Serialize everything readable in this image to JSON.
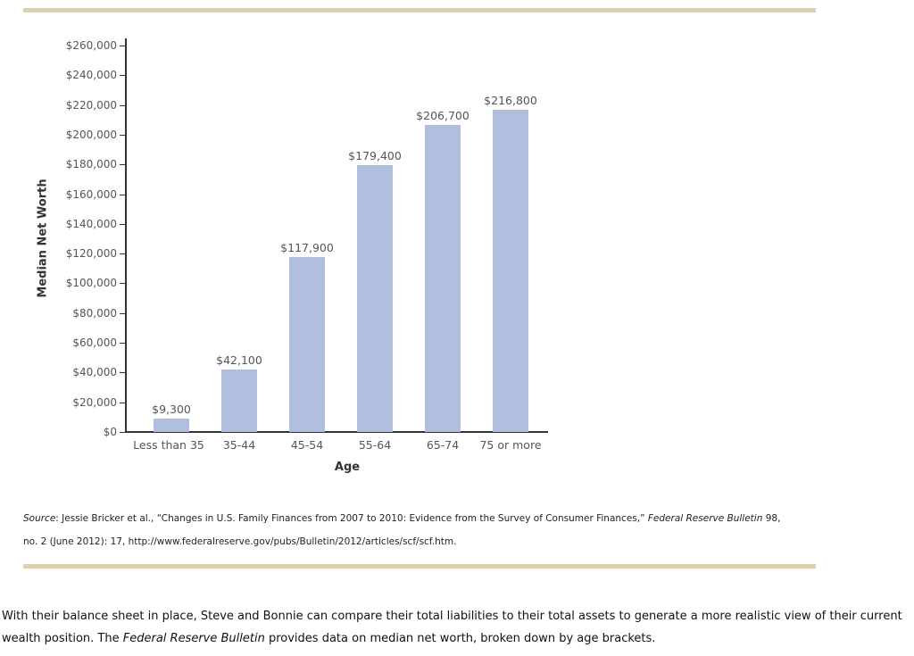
{
  "chart_data": {
    "type": "bar",
    "title": "",
    "xlabel": "Age",
    "ylabel": "Median Net Worth",
    "categories": [
      "Less than 35",
      "35-44",
      "45-54",
      "55-64",
      "65-74",
      "75 or more"
    ],
    "values": [
      9300,
      42100,
      117900,
      179400,
      206700,
      216800
    ],
    "value_labels": [
      "$9,300",
      "$42,100",
      "$117,900",
      "$179,400",
      "$206,700",
      "$216,800"
    ],
    "ylim": [
      0,
      260000
    ],
    "yticks": [
      0,
      20000,
      40000,
      60000,
      80000,
      100000,
      120000,
      140000,
      160000,
      180000,
      200000,
      220000,
      240000,
      260000
    ],
    "ytick_labels": [
      "$0",
      "$20,000",
      "$40,000",
      "$60,000",
      "$80,000",
      "$100,000",
      "$120,000",
      "$140,000",
      "$160,000",
      "$180,000",
      "$200,000",
      "$220,000",
      "$240,000",
      "$260,000"
    ],
    "grid": false,
    "legend": null,
    "bar_color": "#b0bfdf"
  },
  "source": {
    "label": "Source",
    "text_1": ": Jessie Bricker et al., “Changes in U.S. Family Finances from 2007 to 2010: Evidence from the Survey of Consumer Finances,” ",
    "journal": "Federal Reserve Bulletin",
    "text_2": " 98,",
    "line_2": "no. 2 (June 2012): 17, http://www.federalreserve.gov/pubs/Bulletin/2012/articles/scf/scf.htm."
  },
  "paragraph": {
    "part_1": "With their balance sheet in place, Steve and Bonnie can compare their total liabilities to their total assets to generate a more realistic view of their current wealth position. The ",
    "italic": "Federal Reserve Bulletin",
    "part_2": " provides data on median net worth, broken down by age brackets."
  },
  "colors": {
    "rule": "#ddd0ab",
    "bar": "#b0bfdf",
    "axis": "#333333"
  }
}
